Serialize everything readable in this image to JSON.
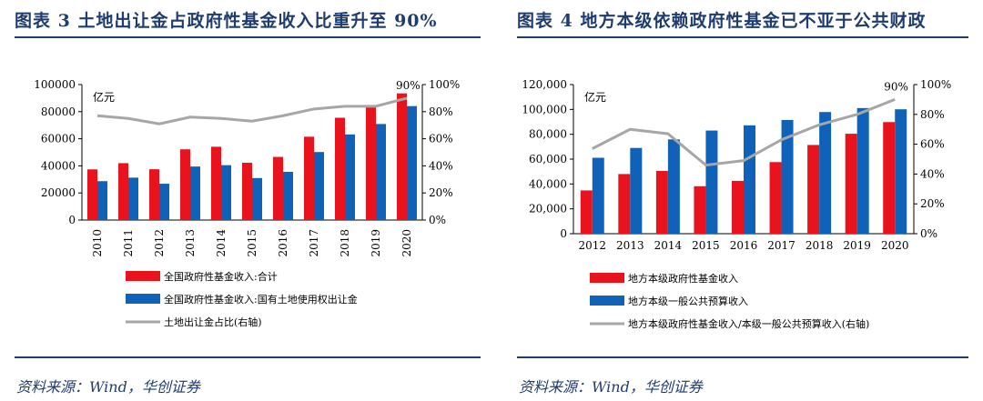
{
  "left": {
    "title": "图表 3   土地出让金占政府性基金收入比重升至 90%",
    "source": "资料来源：Wind，华创证券",
    "chart_data": {
      "type": "bar",
      "unit_label": "亿元",
      "categories": [
        "2010",
        "2011",
        "2012",
        "2013",
        "2014",
        "2015",
        "2016",
        "2017",
        "2018",
        "2019",
        "2020"
      ],
      "series": [
        {
          "name": "全国政府性基金收入:合计",
          "kind": "bar",
          "color": "#e8131c",
          "values": [
            37400,
            42000,
            37500,
            52200,
            54100,
            42300,
            46600,
            61500,
            75500,
            84500,
            93500
          ]
        },
        {
          "name": "全国政府性基金收入:国有土地使用权出让金",
          "kind": "bar",
          "color": "#0f62b8",
          "values": [
            28700,
            31300,
            26800,
            39500,
            40500,
            31000,
            35600,
            50200,
            63200,
            70900,
            84100
          ]
        },
        {
          "name": "土地出让金占比(右轴)",
          "kind": "line",
          "axis": "right",
          "color": "#a6a6a6",
          "values": [
            0.77,
            0.75,
            0.71,
            0.76,
            0.75,
            0.73,
            0.77,
            0.82,
            0.84,
            0.84,
            0.9
          ]
        }
      ],
      "ylim_left": [
        0,
        100000
      ],
      "yticks_left": [
        "0",
        "20000",
        "40000",
        "60000",
        "80000",
        "100000"
      ],
      "ylim_right": [
        0,
        1.0
      ],
      "yticks_right": [
        "0%",
        "20%",
        "40%",
        "60%",
        "80%",
        "100%"
      ],
      "annotation": "90%"
    }
  },
  "right": {
    "title": "图表 4   地方本级依赖政府性基金已不亚于公共财政",
    "source": "资料来源：Wind，华创证券",
    "chart_data": {
      "type": "bar",
      "unit_label": "亿元",
      "categories": [
        "2012",
        "2013",
        "2014",
        "2015",
        "2016",
        "2017",
        "2018",
        "2019",
        "2020"
      ],
      "series": [
        {
          "name": "地方本级政府性基金收入",
          "kind": "bar",
          "color": "#e8131c",
          "values": [
            34800,
            48000,
            50500,
            38200,
            42500,
            57600,
            71400,
            80400,
            89800
          ]
        },
        {
          "name": "地方本级一般公共预算收入",
          "kind": "bar",
          "color": "#0f62b8",
          "values": [
            61100,
            69000,
            75900,
            83000,
            87200,
            91500,
            97900,
            101100,
            100100
          ]
        },
        {
          "name": "地方本级政府性基金收入/本级一般公共预算收入(右轴)",
          "kind": "line",
          "axis": "right",
          "color": "#a6a6a6",
          "values": [
            0.57,
            0.7,
            0.67,
            0.46,
            0.49,
            0.63,
            0.73,
            0.8,
            0.9
          ]
        }
      ],
      "ylim_left": [
        0,
        120000
      ],
      "yticks_left": [
        "0",
        "20,000",
        "40,000",
        "60,000",
        "80,000",
        "100,000",
        "120,000"
      ],
      "ylim_right": [
        0,
        1.0
      ],
      "yticks_right": [
        "0%",
        "20%",
        "40%",
        "60%",
        "80%",
        "100%"
      ],
      "annotation": "90%"
    }
  }
}
